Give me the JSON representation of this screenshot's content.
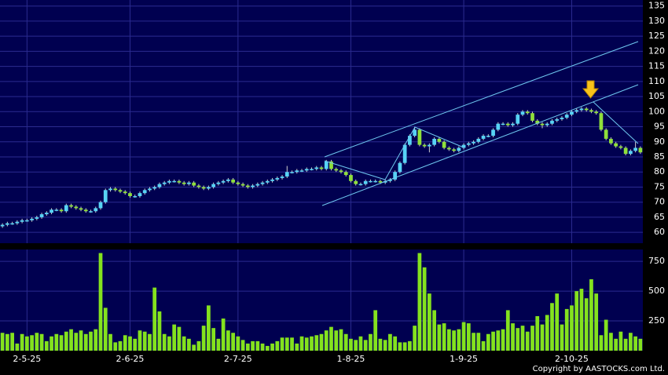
{
  "chart_data": {
    "type": "candlestick",
    "categories": [
      null,
      null,
      null,
      null,
      null,
      "2-5-25",
      null,
      null,
      null,
      null,
      null,
      null,
      null,
      null,
      null,
      null,
      null,
      null,
      null,
      null,
      null,
      null,
      null,
      null,
      null,
      null,
      "2-6-25",
      null,
      null,
      null,
      null,
      null,
      null,
      null,
      null,
      null,
      null,
      null,
      null,
      null,
      null,
      null,
      null,
      null,
      null,
      null,
      null,
      null,
      "2-7-25",
      null,
      null,
      null,
      null,
      null,
      null,
      null,
      null,
      null,
      null,
      null,
      null,
      null,
      null,
      null,
      null,
      null,
      null,
      null,
      null,
      null,
      null,
      "1-8-25",
      null,
      null,
      null,
      null,
      null,
      null,
      null,
      null,
      null,
      null,
      null,
      null,
      null,
      null,
      null,
      null,
      null,
      null,
      null,
      null,
      null,
      null,
      "1-9-25",
      null,
      null,
      null,
      null,
      null,
      null,
      null,
      null,
      null,
      null,
      null,
      null,
      null,
      null,
      null,
      null,
      null,
      null,
      null,
      null,
      null,
      "2-10-25",
      null,
      null,
      null,
      null,
      null,
      null,
      null,
      null,
      null,
      null,
      null,
      null,
      null,
      null
    ],
    "open": [
      62,
      62.5,
      63,
      63,
      63.5,
      64,
      64,
      64.5,
      65,
      66,
      66.5,
      67.5,
      67.5,
      67,
      69,
      68.5,
      68,
      67.5,
      67,
      67,
      68,
      70,
      74,
      74.5,
      74,
      73.5,
      73,
      72,
      72,
      73,
      74,
      74.5,
      75,
      76,
      76.5,
      77,
      77,
      76.5,
      76,
      76.5,
      75.5,
      75,
      74.5,
      75,
      76,
      76.5,
      77,
      77.5,
      76.5,
      76,
      75.5,
      75,
      75.5,
      76,
      76.5,
      77,
      77.5,
      78,
      78.5,
      80,
      80,
      80.5,
      80.5,
      81,
      81,
      81.5,
      81,
      83.5,
      81,
      80.5,
      80,
      79,
      77,
      76,
      76,
      77,
      77,
      77,
      76.5,
      77,
      77.5,
      80,
      83,
      89,
      92,
      94,
      89,
      88.5,
      89,
      91,
      90,
      88,
      87.5,
      87,
      88,
      89,
      89.5,
      90,
      91,
      92,
      92,
      94,
      96,
      96,
      95.5,
      96,
      99,
      100,
      99.5,
      97,
      96,
      95.5,
      96,
      97,
      97.5,
      98,
      99,
      100,
      100.5,
      101,
      100.5,
      100,
      99.5,
      94,
      91,
      89.5,
      88.5,
      88,
      86,
      87,
      88
    ],
    "high": [
      63,
      63.5,
      63.5,
      64,
      64.5,
      64.5,
      65,
      65.5,
      66.5,
      67,
      68,
      68,
      68,
      69.5,
      69.5,
      69,
      68.5,
      68,
      67.5,
      68.5,
      70.5,
      74.5,
      75,
      75,
      74.5,
      74,
      73.5,
      72.5,
      73.5,
      74.5,
      75,
      75.5,
      76.5,
      77,
      77.5,
      77.5,
      77.5,
      77,
      77,
      77,
      76,
      75.5,
      75.5,
      76.5,
      77,
      77.5,
      78,
      78,
      77,
      76.5,
      76,
      76,
      76.5,
      77,
      77.5,
      78,
      78.5,
      79,
      82,
      80.5,
      81,
      81,
      81.5,
      81.5,
      82,
      82,
      84,
      84,
      81.5,
      81,
      80.5,
      79.5,
      77.5,
      76.5,
      77.5,
      77.5,
      77.5,
      77.5,
      77.5,
      78,
      80.5,
      83.5,
      89.5,
      92.5,
      95,
      94.5,
      89.5,
      89.5,
      91.5,
      91.5,
      90.5,
      88.5,
      88,
      88.5,
      89.5,
      90,
      90.5,
      91.5,
      92.5,
      92.5,
      94.5,
      96.5,
      96.5,
      96.5,
      96.5,
      99.5,
      100.5,
      100.5,
      100,
      97.5,
      96.5,
      96.5,
      97.5,
      98,
      98.5,
      99.5,
      100.5,
      101,
      101.5,
      101.5,
      101,
      100.5,
      100,
      94.5,
      91.5,
      90,
      89,
      88.5,
      87.5,
      90,
      88.5
    ],
    "low": [
      61.5,
      62,
      62.5,
      62.5,
      63,
      63.5,
      63.5,
      64,
      64.5,
      65.5,
      66,
      67,
      66.5,
      66.5,
      68,
      67.5,
      67,
      66.5,
      66.5,
      66.5,
      67.5,
      69.5,
      73.5,
      73.5,
      73,
      72.5,
      71.5,
      71.5,
      71.5,
      72.5,
      73.5,
      74,
      74.5,
      75.5,
      76,
      76.5,
      76,
      75.5,
      75.5,
      75,
      74.5,
      74,
      74,
      74.5,
      75.5,
      76,
      76.5,
      76,
      75.5,
      75,
      74.5,
      74.5,
      75,
      75.5,
      76,
      76.5,
      77,
      77.5,
      78,
      79.5,
      79.5,
      80,
      80,
      80.5,
      80.5,
      80.5,
      80.5,
      80.5,
      80,
      79.5,
      78.5,
      76.5,
      75.5,
      75.5,
      75.5,
      76.5,
      76.5,
      76,
      76,
      76.5,
      77,
      79.5,
      82.5,
      88.5,
      91.5,
      88.5,
      88,
      86.5,
      88.5,
      89.5,
      87.5,
      87,
      86.5,
      86.5,
      87.5,
      88.5,
      89,
      89.5,
      90.5,
      91.5,
      91.5,
      93.5,
      95.5,
      95,
      95,
      95.5,
      98.5,
      99,
      96.5,
      95.5,
      94.5,
      95,
      95.5,
      96.5,
      97,
      97.5,
      98.5,
      99.5,
      100,
      100,
      99.5,
      99,
      93.5,
      90.5,
      89,
      88,
      87.5,
      85.5,
      85.5,
      86.5,
      86
    ],
    "close": [
      62.5,
      63,
      63,
      63.5,
      64,
      64,
      64.5,
      65,
      66,
      66.5,
      67.5,
      67.5,
      67,
      69,
      68.5,
      68,
      67.5,
      67,
      67,
      68,
      70,
      74,
      74.5,
      74,
      73.5,
      73,
      72,
      72,
      73,
      74,
      74.5,
      75,
      76,
      76.5,
      77,
      77,
      76.5,
      76,
      76.5,
      75.5,
      75,
      74.5,
      75,
      76,
      76.5,
      77,
      77.5,
      76.5,
      76,
      75.5,
      75,
      75.5,
      76,
      76.5,
      77,
      77.5,
      78,
      78.5,
      80,
      80,
      80.5,
      80.5,
      81,
      81,
      81.5,
      81,
      83.5,
      81,
      80.5,
      80,
      79,
      77,
      76,
      76,
      77,
      77,
      77,
      76.5,
      77,
      77.5,
      80,
      83,
      89,
      92,
      94,
      89,
      88.5,
      89,
      91,
      90,
      88,
      87.5,
      87,
      88,
      89,
      89.5,
      90,
      91,
      92,
      92,
      94,
      96,
      96,
      95.5,
      96,
      99,
      100,
      99.5,
      97,
      96,
      95.5,
      96,
      97,
      97.5,
      98,
      99,
      100,
      100.5,
      101,
      100.5,
      100,
      99.5,
      94,
      91,
      89.5,
      88.5,
      88,
      86,
      87,
      88,
      86.5
    ],
    "up_color": "#57d3f5",
    "down_color": "#8fe03a",
    "ylim": [
      56.4,
      137
    ],
    "yticks": [
      60,
      65,
      70,
      75,
      80,
      85,
      90,
      95,
      100,
      105,
      110,
      115,
      120,
      125,
      130,
      135
    ],
    "grid": true,
    "volume": {
      "values": [
        150,
        140,
        150,
        60,
        140,
        120,
        130,
        150,
        140,
        80,
        120,
        140,
        130,
        160,
        180,
        150,
        170,
        140,
        160,
        180,
        820,
        360,
        140,
        70,
        80,
        130,
        120,
        100,
        170,
        160,
        140,
        530,
        330,
        140,
        120,
        220,
        200,
        120,
        100,
        50,
        80,
        210,
        380,
        190,
        100,
        270,
        170,
        150,
        120,
        90,
        60,
        80,
        80,
        60,
        40,
        60,
        80,
        110,
        110,
        110,
        60,
        120,
        110,
        120,
        130,
        140,
        170,
        200,
        170,
        180,
        140,
        100,
        90,
        120,
        90,
        140,
        340,
        100,
        90,
        140,
        120,
        70,
        70,
        80,
        210,
        820,
        700,
        480,
        340,
        220,
        230,
        180,
        170,
        180,
        240,
        230,
        150,
        150,
        80,
        140,
        160,
        170,
        180,
        340,
        230,
        190,
        210,
        160,
        210,
        290,
        220,
        300,
        400,
        480,
        220,
        350,
        380,
        500,
        520,
        440,
        600,
        480,
        130,
        260,
        150,
        100,
        160,
        100,
        150,
        120,
        100
      ],
      "color": "#84e21e",
      "ylim": [
        0,
        850
      ],
      "yticks": [
        250,
        500,
        750
      ]
    },
    "copyright": "Copyright by AASTOCKS.com Ltd."
  }
}
